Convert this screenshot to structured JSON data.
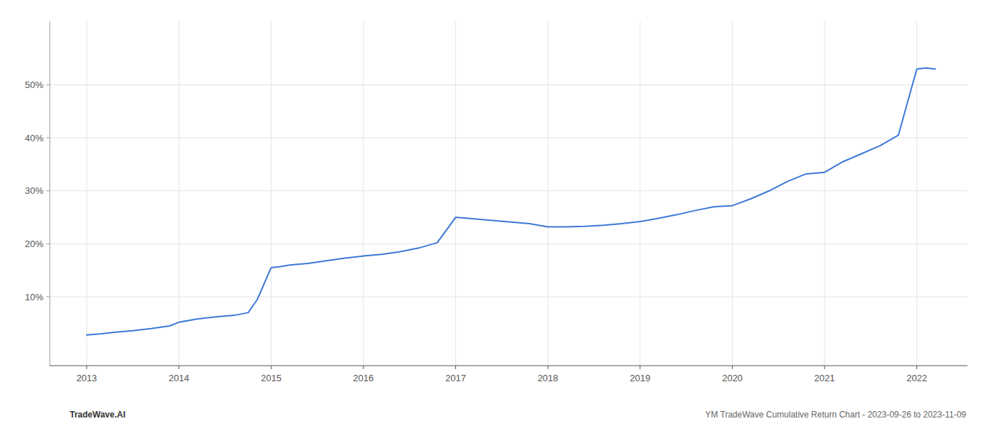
{
  "chart_data": {
    "type": "line",
    "x": [
      2013.0,
      2013.15,
      2013.3,
      2013.5,
      2013.7,
      2013.9,
      2014.0,
      2014.2,
      2014.4,
      2014.6,
      2014.75,
      2014.85,
      2015.0,
      2015.1,
      2015.2,
      2015.4,
      2015.6,
      2015.8,
      2016.0,
      2016.2,
      2016.4,
      2016.6,
      2016.8,
      2017.0,
      2017.2,
      2017.4,
      2017.6,
      2017.8,
      2018.0,
      2018.2,
      2018.4,
      2018.6,
      2018.8,
      2019.0,
      2019.2,
      2019.4,
      2019.6,
      2019.8,
      2020.0,
      2020.2,
      2020.4,
      2020.6,
      2020.8,
      2021.0,
      2021.2,
      2021.4,
      2021.6,
      2021.8,
      2022.0,
      2022.1,
      2022.2
    ],
    "values": [
      2.8,
      3.0,
      3.3,
      3.6,
      4.0,
      4.5,
      5.2,
      5.8,
      6.2,
      6.5,
      7.0,
      9.5,
      15.5,
      15.7,
      16.0,
      16.3,
      16.8,
      17.3,
      17.7,
      18.0,
      18.5,
      19.2,
      20.2,
      25.0,
      24.7,
      24.4,
      24.1,
      23.8,
      23.2,
      23.2,
      23.3,
      23.5,
      23.8,
      24.2,
      24.8,
      25.5,
      26.3,
      27.0,
      27.2,
      28.5,
      30.0,
      31.8,
      33.2,
      33.5,
      35.5,
      37.0,
      38.5,
      40.5,
      53.0,
      53.2,
      53.0
    ],
    "color": "#3c78d8",
    "xlim": [
      2012.6,
      2022.55
    ],
    "xticks": [
      2013,
      2014,
      2015,
      2016,
      2017,
      2018,
      2019,
      2020,
      2021,
      2022
    ],
    "ylim": [
      -3,
      62
    ],
    "yticks": [
      {
        "value": 10,
        "label": "10%"
      },
      {
        "value": 20,
        "label": "20%"
      },
      {
        "value": 30,
        "label": "30%"
      },
      {
        "value": 40,
        "label": "40%"
      },
      {
        "value": 50,
        "label": "50%"
      }
    ],
    "grid": true,
    "annotations": [
      "TradeWave.AI",
      "YM TradeWave Cumulative Return Chart - 2023-09-26 to 2023-11-09"
    ]
  }
}
